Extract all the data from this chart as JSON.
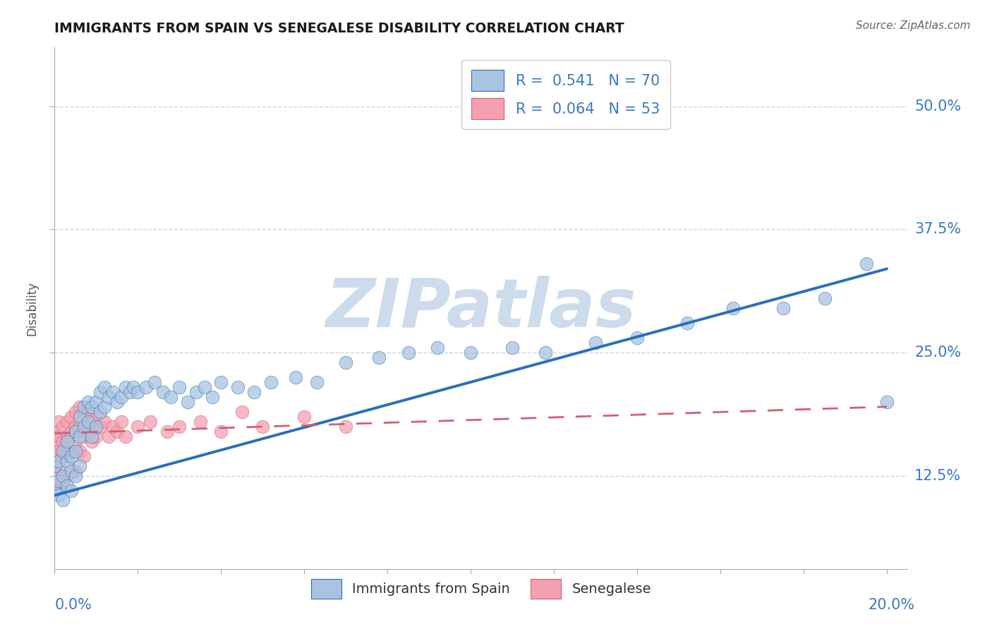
{
  "title": "IMMIGRANTS FROM SPAIN VS SENEGALESE DISABILITY CORRELATION CHART",
  "source": "Source: ZipAtlas.com",
  "ylabel": "Disability",
  "y_tick_labels": [
    "12.5%",
    "25.0%",
    "37.5%",
    "50.0%"
  ],
  "y_tick_values": [
    0.125,
    0.25,
    0.375,
    0.5
  ],
  "xlim": [
    0.0,
    0.205
  ],
  "ylim": [
    0.03,
    0.56
  ],
  "legend_r1": "R =  0.541   N = 70",
  "legend_r2": "R =  0.064   N = 53",
  "scatter_blue_color": "#a8c4e0",
  "scatter_blue_edge": "#2a6ebb",
  "scatter_pink_color": "#f4a0b0",
  "scatter_pink_edge": "#d06070",
  "line_blue_color": "#2a6ebb",
  "line_pink_color": "#d06070",
  "watermark_text": "ZIPatlas",
  "watermark_color": "#cddcec",
  "blue_scatter_x": [
    0.0,
    0.0,
    0.001,
    0.001,
    0.001,
    0.002,
    0.002,
    0.002,
    0.003,
    0.003,
    0.003,
    0.004,
    0.004,
    0.004,
    0.005,
    0.005,
    0.005,
    0.006,
    0.006,
    0.006,
    0.007,
    0.007,
    0.008,
    0.008,
    0.009,
    0.009,
    0.01,
    0.01,
    0.011,
    0.011,
    0.012,
    0.012,
    0.013,
    0.014,
    0.015,
    0.016,
    0.017,
    0.018,
    0.019,
    0.02,
    0.022,
    0.024,
    0.026,
    0.028,
    0.03,
    0.032,
    0.034,
    0.036,
    0.038,
    0.04,
    0.044,
    0.048,
    0.052,
    0.058,
    0.063,
    0.07,
    0.078,
    0.085,
    0.092,
    0.1,
    0.11,
    0.118,
    0.13,
    0.14,
    0.152,
    0.163,
    0.175,
    0.185,
    0.195,
    0.2
  ],
  "blue_scatter_y": [
    0.135,
    0.11,
    0.14,
    0.12,
    0.105,
    0.15,
    0.125,
    0.1,
    0.16,
    0.14,
    0.115,
    0.145,
    0.13,
    0.11,
    0.17,
    0.15,
    0.125,
    0.185,
    0.165,
    0.135,
    0.195,
    0.175,
    0.2,
    0.18,
    0.195,
    0.165,
    0.2,
    0.175,
    0.21,
    0.19,
    0.215,
    0.195,
    0.205,
    0.21,
    0.2,
    0.205,
    0.215,
    0.21,
    0.215,
    0.21,
    0.215,
    0.22,
    0.21,
    0.205,
    0.215,
    0.2,
    0.21,
    0.215,
    0.205,
    0.22,
    0.215,
    0.21,
    0.22,
    0.225,
    0.22,
    0.24,
    0.245,
    0.25,
    0.255,
    0.25,
    0.255,
    0.25,
    0.26,
    0.265,
    0.28,
    0.295,
    0.295,
    0.305,
    0.34,
    0.2
  ],
  "pink_scatter_x": [
    0.0,
    0.0,
    0.0,
    0.0,
    0.001,
    0.001,
    0.001,
    0.001,
    0.001,
    0.002,
    0.002,
    0.002,
    0.002,
    0.003,
    0.003,
    0.003,
    0.003,
    0.004,
    0.004,
    0.004,
    0.005,
    0.005,
    0.005,
    0.005,
    0.006,
    0.006,
    0.006,
    0.007,
    0.007,
    0.007,
    0.008,
    0.008,
    0.009,
    0.009,
    0.01,
    0.01,
    0.011,
    0.012,
    0.013,
    0.014,
    0.015,
    0.016,
    0.017,
    0.02,
    0.023,
    0.027,
    0.03,
    0.035,
    0.04,
    0.045,
    0.05,
    0.06,
    0.07
  ],
  "pink_scatter_y": [
    0.17,
    0.155,
    0.14,
    0.125,
    0.18,
    0.165,
    0.15,
    0.135,
    0.115,
    0.175,
    0.16,
    0.145,
    0.12,
    0.18,
    0.165,
    0.145,
    0.125,
    0.185,
    0.17,
    0.15,
    0.19,
    0.175,
    0.155,
    0.13,
    0.195,
    0.175,
    0.15,
    0.185,
    0.165,
    0.145,
    0.19,
    0.17,
    0.18,
    0.16,
    0.185,
    0.165,
    0.175,
    0.18,
    0.165,
    0.175,
    0.17,
    0.18,
    0.165,
    0.175,
    0.18,
    0.17,
    0.175,
    0.18,
    0.17,
    0.19,
    0.175,
    0.185,
    0.175
  ],
  "blue_line_x": [
    0.0,
    0.2
  ],
  "blue_line_y": [
    0.105,
    0.335
  ],
  "pink_line_x": [
    0.0,
    0.2
  ],
  "pink_line_y": [
    0.168,
    0.195
  ],
  "grid_color": "#c8d4e4",
  "background_color": "#ffffff",
  "axis_color": "#aaaaaa",
  "title_color": "#1a1a1a",
  "axis_label_color": "#3a7abf"
}
